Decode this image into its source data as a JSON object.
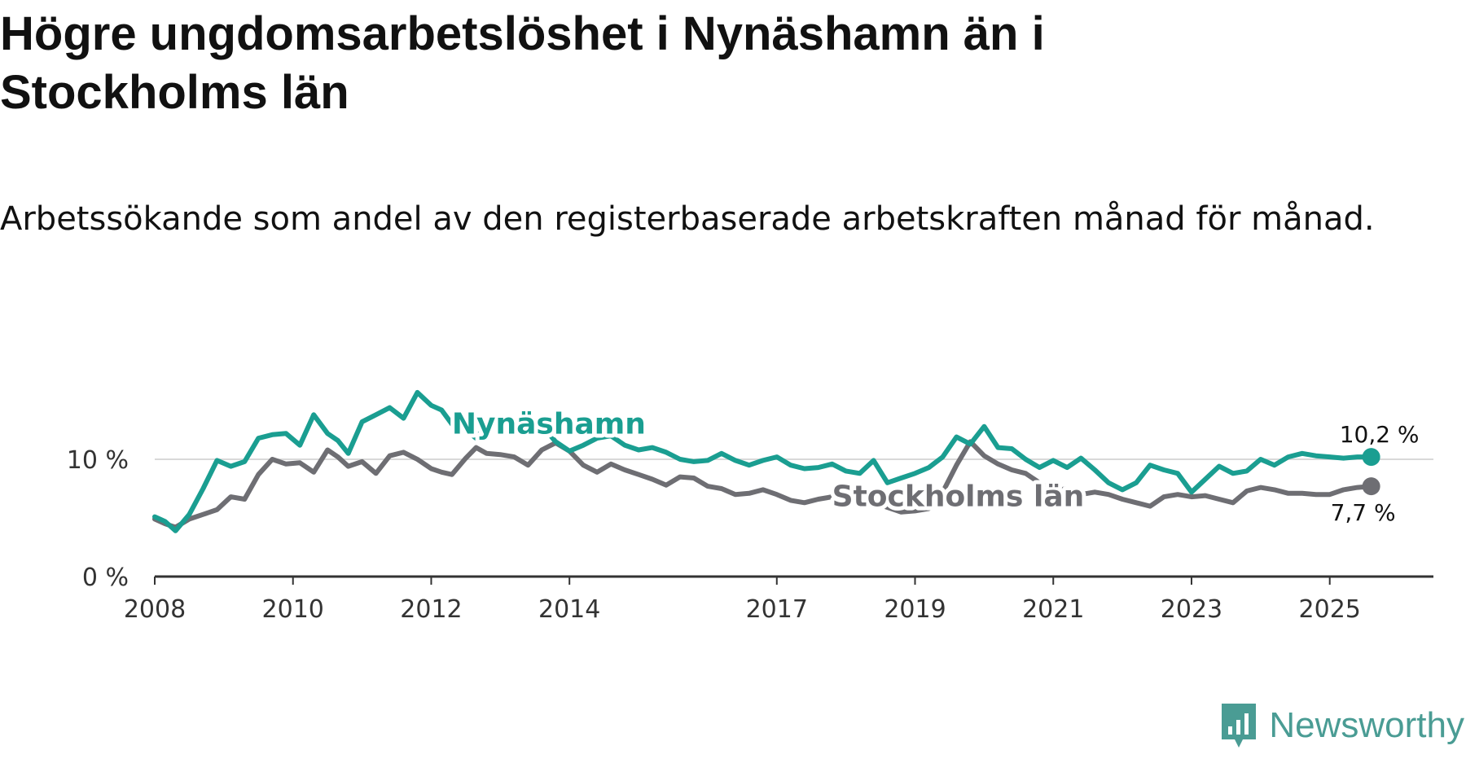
{
  "header": {
    "title": "Högre ungdomsarbetslöshet i Nynäshamn än i Stockholms län",
    "subtitle": "Arbetssökande som andel av den registerbaserade arbetskraften månad för månad."
  },
  "logo": {
    "name": "Newsworthy",
    "icon": "bar-chart-speech-icon",
    "color": "#4a9c94"
  },
  "chart_data": {
    "type": "line",
    "title": "Högre ungdomsarbetslöshet i Nynäshamn än i Stockholms län",
    "subtitle": "Arbetssökande som andel av den registerbaserade arbetskraften månad för månad.",
    "xlabel": "",
    "ylabel": "",
    "xlim": [
      2008.0,
      2026.5
    ],
    "ylim": [
      0,
      20
    ],
    "grid": {
      "y": true,
      "x": false
    },
    "x_ticks": [
      2008,
      2010,
      2012,
      2014,
      2017,
      2019,
      2021,
      2023,
      2025
    ],
    "x_tick_labels": [
      "2008",
      "2010",
      "2012",
      "2014",
      "2017",
      "2019",
      "2021",
      "2023",
      "2025"
    ],
    "y_ticks": [
      0,
      10
    ],
    "y_tick_labels": [
      "0 %",
      "10 %"
    ],
    "series": [
      {
        "name": "Nynäshamn",
        "label": "Nynäshamn",
        "color": "#1a9e91",
        "end_label": "10,2 %",
        "x": [
          2008.0,
          2008.15,
          2008.3,
          2008.5,
          2008.7,
          2008.9,
          2009.1,
          2009.3,
          2009.5,
          2009.7,
          2009.9,
          2010.1,
          2010.3,
          2010.5,
          2010.65,
          2010.8,
          2011.0,
          2011.2,
          2011.4,
          2011.6,
          2011.8,
          2012.0,
          2012.15,
          2012.3,
          2012.5,
          2012.65,
          2012.8,
          2013.0,
          2013.2,
          2013.4,
          2013.6,
          2013.8,
          2014.0,
          2014.2,
          2014.4,
          2014.6,
          2014.8,
          2015.0,
          2015.2,
          2015.4,
          2015.6,
          2015.8,
          2016.0,
          2016.2,
          2016.4,
          2016.6,
          2016.8,
          2017.0,
          2017.2,
          2017.4,
          2017.6,
          2017.8,
          2018.0,
          2018.2,
          2018.4,
          2018.6,
          2018.8,
          2019.0,
          2019.2,
          2019.4,
          2019.6,
          2019.8,
          2020.0,
          2020.2,
          2020.4,
          2020.6,
          2020.8,
          2021.0,
          2021.2,
          2021.4,
          2021.6,
          2021.8,
          2022.0,
          2022.2,
          2022.4,
          2022.6,
          2022.8,
          2023.0,
          2023.2,
          2023.4,
          2023.6,
          2023.8,
          2024.0,
          2024.2,
          2024.4,
          2024.6,
          2024.8,
          2025.0,
          2025.2,
          2025.4,
          2025.6
        ],
        "values": [
          5.1,
          4.7,
          3.9,
          5.3,
          7.5,
          9.9,
          9.4,
          9.8,
          11.8,
          12.1,
          12.2,
          11.2,
          13.8,
          12.2,
          11.6,
          10.5,
          13.2,
          13.8,
          14.4,
          13.5,
          15.7,
          14.6,
          14.2,
          13.0,
          12.5,
          11.8,
          12.9,
          13.4,
          13.0,
          12.6,
          12.9,
          11.5,
          10.7,
          11.2,
          11.8,
          12.0,
          11.2,
          10.8,
          11.0,
          10.6,
          10.0,
          9.8,
          9.9,
          10.5,
          9.9,
          9.5,
          9.9,
          10.2,
          9.5,
          9.2,
          9.3,
          9.6,
          9.0,
          8.8,
          9.9,
          8.0,
          8.4,
          8.8,
          9.3,
          10.2,
          11.9,
          11.3,
          12.8,
          11.0,
          10.9,
          10.0,
          9.3,
          9.9,
          9.3,
          10.1,
          9.1,
          8.0,
          7.4,
          8.0,
          9.5,
          9.1,
          8.8,
          7.2,
          8.3,
          9.4,
          8.8,
          9.0,
          10.0,
          9.5,
          10.2,
          10.5,
          10.3,
          10.2,
          10.1,
          10.2,
          10.2
        ]
      },
      {
        "name": "Stockholms län",
        "label": "Stockholms län",
        "color": "#6e6e73",
        "end_label": "7,7 %",
        "x": [
          2008.0,
          2008.15,
          2008.3,
          2008.5,
          2008.7,
          2008.9,
          2009.1,
          2009.3,
          2009.5,
          2009.7,
          2009.9,
          2010.1,
          2010.3,
          2010.5,
          2010.65,
          2010.8,
          2011.0,
          2011.2,
          2011.4,
          2011.6,
          2011.8,
          2012.0,
          2012.15,
          2012.3,
          2012.5,
          2012.65,
          2012.8,
          2013.0,
          2013.2,
          2013.4,
          2013.6,
          2013.8,
          2014.0,
          2014.2,
          2014.4,
          2014.6,
          2014.8,
          2015.0,
          2015.2,
          2015.4,
          2015.6,
          2015.8,
          2016.0,
          2016.2,
          2016.4,
          2016.6,
          2016.8,
          2017.0,
          2017.2,
          2017.4,
          2017.6,
          2017.8,
          2018.0,
          2018.2,
          2018.4,
          2018.6,
          2018.8,
          2019.0,
          2019.2,
          2019.4,
          2019.6,
          2019.8,
          2020.0,
          2020.2,
          2020.4,
          2020.6,
          2020.8,
          2021.0,
          2021.2,
          2021.4,
          2021.6,
          2021.8,
          2022.0,
          2022.2,
          2022.4,
          2022.6,
          2022.8,
          2023.0,
          2023.2,
          2023.4,
          2023.6,
          2023.8,
          2024.0,
          2024.2,
          2024.4,
          2024.6,
          2024.8,
          2025.0,
          2025.2,
          2025.4,
          2025.6
        ],
        "values": [
          4.9,
          4.5,
          4.2,
          4.9,
          5.3,
          5.7,
          6.8,
          6.6,
          8.7,
          10.0,
          9.6,
          9.7,
          8.9,
          10.8,
          10.2,
          9.4,
          9.8,
          8.8,
          10.3,
          10.6,
          10.0,
          9.2,
          8.9,
          8.7,
          10.1,
          11.0,
          10.5,
          10.4,
          10.2,
          9.5,
          10.8,
          11.4,
          10.7,
          9.5,
          8.9,
          9.6,
          9.1,
          8.7,
          8.3,
          7.8,
          8.5,
          8.4,
          7.7,
          7.5,
          7.0,
          7.1,
          7.4,
          7.0,
          6.5,
          6.3,
          6.6,
          6.8,
          6.4,
          6.1,
          6.3,
          5.9,
          5.5,
          5.6,
          5.8,
          7.2,
          9.5,
          11.5,
          10.3,
          9.6,
          9.1,
          8.8,
          8.0,
          7.3,
          7.5,
          7.0,
          7.2,
          7.0,
          6.6,
          6.3,
          6.0,
          6.8,
          7.0,
          6.8,
          6.9,
          6.6,
          6.3,
          7.3,
          7.6,
          7.4,
          7.1,
          7.1,
          7.0,
          7.0,
          7.4,
          7.6,
          7.7
        ]
      }
    ]
  }
}
